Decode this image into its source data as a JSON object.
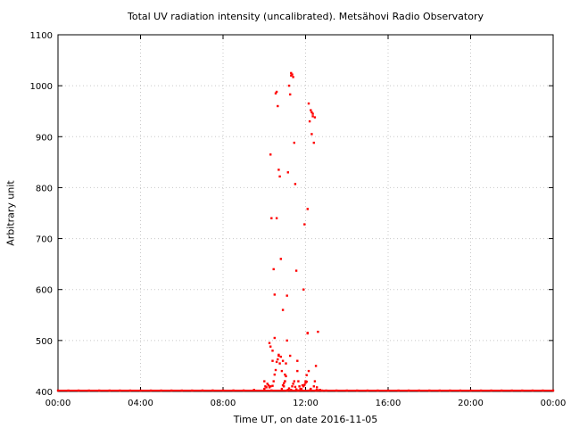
{
  "chart_data": {
    "type": "scatter",
    "title": "Total UV radiation intensity (uncalibrated). Metsähovi Radio Observatory",
    "xlabel": "Time UT, on date 2016-11-05",
    "ylabel": "Arbitrary unit",
    "xlim": [
      0,
      24
    ],
    "ylim": [
      400,
      1100
    ],
    "x_ticks": [
      0,
      4,
      8,
      12,
      16,
      20,
      24
    ],
    "x_tick_labels": [
      "00:00",
      "04:00",
      "08:00",
      "12:00",
      "16:00",
      "20:00",
      "00:00"
    ],
    "y_ticks": [
      400,
      500,
      600,
      700,
      800,
      900,
      1000,
      1100
    ],
    "y_tick_labels": [
      "400",
      "500",
      "600",
      "700",
      "800",
      "900",
      "1000",
      "1100"
    ],
    "grid": true,
    "marker_color": "#ff0000",
    "series": [
      {
        "x": [
          0.0,
          0.5,
          1.0,
          1.5,
          2.0,
          2.5,
          3.0,
          3.5,
          4.0,
          4.5,
          5.0,
          5.5,
          6.0,
          6.5,
          7.0,
          7.5,
          8.0,
          8.5,
          9.0,
          9.5,
          10.0,
          10.0,
          10.05,
          10.1,
          10.15,
          10.2,
          10.25,
          10.3,
          10.3,
          10.35,
          10.4,
          10.4,
          10.45,
          10.5,
          10.5,
          10.55,
          10.6,
          10.6,
          10.65,
          10.7,
          10.7,
          10.75,
          10.8,
          10.8,
          10.85,
          10.9,
          10.9,
          10.95,
          11.0,
          11.0,
          11.05,
          11.1,
          11.1,
          11.15,
          11.2,
          11.25,
          11.3,
          11.3,
          11.35,
          11.4,
          11.45,
          11.5,
          11.55,
          11.6,
          11.6,
          11.65,
          11.7,
          11.75,
          11.8,
          11.85,
          11.9,
          11.95,
          12.0,
          12.05,
          12.1,
          12.1,
          12.15,
          12.2,
          12.25,
          12.3,
          12.35,
          12.4,
          12.45,
          12.5,
          12.55,
          12.6,
          12.7,
          12.8,
          13.0,
          10.25,
          10.3,
          10.35,
          10.4,
          10.45,
          10.5,
          10.55,
          10.6,
          10.65,
          10.7,
          10.75,
          10.85,
          10.9,
          10.95,
          11.0,
          11.05,
          11.1,
          11.15,
          11.2,
          11.25,
          11.3,
          11.35,
          11.4,
          11.45,
          11.5,
          11.55,
          11.6,
          11.65,
          11.9,
          11.95,
          12.0,
          12.05,
          12.1,
          12.15,
          12.2,
          12.25,
          12.3,
          12.35,
          12.4,
          12.45,
          12.5,
          12.55,
          12.6,
          13.5,
          14.0,
          14.5,
          15.0,
          15.5,
          16.0,
          16.5,
          17.0,
          17.5,
          18.0,
          18.5,
          19.0,
          19.5,
          20.0,
          20.5,
          21.0,
          21.5,
          22.0,
          22.5,
          23.0,
          23.5,
          24.0
        ],
        "y": [
          401,
          401,
          401,
          401,
          401,
          401,
          401,
          401,
          401,
          401,
          401,
          401,
          401,
          401,
          402,
          402,
          402,
          402,
          402,
          403,
          405,
          420,
          410,
          408,
          415,
          412,
          495,
          488,
          865,
          740,
          460,
          480,
          640,
          505,
          590,
          985,
          740,
          988,
          960,
          835,
          472,
          822,
          660,
          468,
          440,
          560,
          460,
          410,
          433,
          420,
          455,
          500,
          588,
          830,
          1000,
          983,
          1025,
          1020,
          1022,
          1017,
          888,
          807,
          637,
          460,
          440,
          420,
          410,
          405,
          405,
          412,
          600,
          728,
          420,
          432,
          758,
          515,
          965,
          930,
          952,
          948,
          940,
          888,
          938,
          450,
          408,
          517,
          403,
          401,
          401,
          408,
          410,
          402,
          411,
          420,
          433,
          442,
          458,
          463,
          470,
          455,
          405,
          412,
          416,
          420,
          430,
          400,
          403,
          406,
          470,
          403,
          410,
          415,
          420,
          409,
          404,
          402,
          401,
          410,
          413,
          417,
          419,
          514,
          440,
          402,
          405,
          905,
          945,
          410,
          420,
          401,
          403,
          402,
          401,
          401,
          401,
          401,
          401,
          401,
          401,
          401,
          401,
          401,
          401,
          401,
          401,
          401,
          401,
          401,
          401,
          401,
          401,
          401,
          401,
          401
        ]
      }
    ]
  }
}
